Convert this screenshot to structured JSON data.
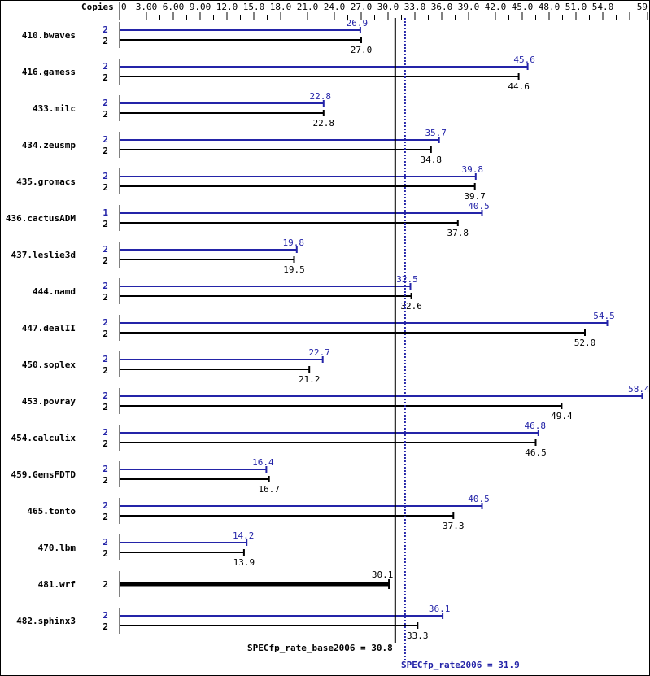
{
  "chart_data": {
    "type": "bar",
    "orientation": "horizontal",
    "axis_label": "Copies",
    "xlim": [
      0,
      59
    ],
    "tick_labels": [
      "0",
      "3.00",
      "6.00",
      "9.00",
      "12.0",
      "15.0",
      "18.0",
      "21.0",
      "24.0",
      "27.0",
      "30.0",
      "33.0",
      "36.0",
      "39.0",
      "42.0",
      "45.0",
      "48.0",
      "51.0",
      "54.0",
      "59.0"
    ],
    "tick_values": [
      0,
      3,
      6,
      9,
      12,
      15,
      18,
      21,
      24,
      27,
      30,
      33,
      36,
      39,
      42,
      45,
      48,
      51,
      54,
      59
    ],
    "colors": {
      "peak": "#2424a8",
      "base": "#000000"
    },
    "benchmarks": [
      {
        "name": "410.bwaves",
        "peak_copies": "2",
        "peak": 26.9,
        "peak_label": "26.9",
        "base_copies": "2",
        "base": 27.0,
        "base_label": "27.0"
      },
      {
        "name": "416.gamess",
        "peak_copies": "2",
        "peak": 45.6,
        "peak_label": "45.6",
        "base_copies": "2",
        "base": 44.6,
        "base_label": "44.6"
      },
      {
        "name": "433.milc",
        "peak_copies": "2",
        "peak": 22.8,
        "peak_label": "22.8",
        "base_copies": "2",
        "base": 22.8,
        "base_label": "22.8"
      },
      {
        "name": "434.zeusmp",
        "peak_copies": "2",
        "peak": 35.7,
        "peak_label": "35.7",
        "base_copies": "2",
        "base": 34.8,
        "base_label": "34.8"
      },
      {
        "name": "435.gromacs",
        "peak_copies": "2",
        "peak": 39.8,
        "peak_label": "39.8",
        "base_copies": "2",
        "base": 39.7,
        "base_label": "39.7"
      },
      {
        "name": "436.cactusADM",
        "peak_copies": "1",
        "peak": 40.5,
        "peak_label": "40.5",
        "base_copies": "2",
        "base": 37.8,
        "base_label": "37.8"
      },
      {
        "name": "437.leslie3d",
        "peak_copies": "2",
        "peak": 19.8,
        "peak_label": "19.8",
        "base_copies": "2",
        "base": 19.5,
        "base_label": "19.5"
      },
      {
        "name": "444.namd",
        "peak_copies": "2",
        "peak": 32.5,
        "peak_label": "32.5",
        "base_copies": "2",
        "base": 32.6,
        "base_label": "32.6"
      },
      {
        "name": "447.dealII",
        "peak_copies": "2",
        "peak": 54.5,
        "peak_label": "54.5",
        "base_copies": "2",
        "base": 52.0,
        "base_label": "52.0"
      },
      {
        "name": "450.soplex",
        "peak_copies": "2",
        "peak": 22.7,
        "peak_label": "22.7",
        "base_copies": "2",
        "base": 21.2,
        "base_label": "21.2"
      },
      {
        "name": "453.povray",
        "peak_copies": "2",
        "peak": 58.4,
        "peak_label": "58.4",
        "base_copies": "2",
        "base": 49.4,
        "base_label": "49.4"
      },
      {
        "name": "454.calculix",
        "peak_copies": "2",
        "peak": 46.8,
        "peak_label": "46.8",
        "base_copies": "2",
        "base": 46.5,
        "base_label": "46.5"
      },
      {
        "name": "459.GemsFDTD",
        "peak_copies": "2",
        "peak": 16.4,
        "peak_label": "16.4",
        "base_copies": "2",
        "base": 16.7,
        "base_label": "16.7"
      },
      {
        "name": "465.tonto",
        "peak_copies": "2",
        "peak": 40.5,
        "peak_label": "40.5",
        "base_copies": "2",
        "base": 37.3,
        "base_label": "37.3"
      },
      {
        "name": "470.lbm",
        "peak_copies": "2",
        "peak": 14.2,
        "peak_label": "14.2",
        "base_copies": "2",
        "base": 13.9,
        "base_label": "13.9"
      },
      {
        "name": "481.wrf",
        "peak_copies": null,
        "peak": null,
        "peak_label": null,
        "base_copies": "2",
        "base": 30.1,
        "base_label": "30.1"
      },
      {
        "name": "482.sphinx3",
        "peak_copies": "2",
        "peak": 36.1,
        "peak_label": "36.1",
        "base_copies": "2",
        "base": 33.3,
        "base_label": "33.3"
      }
    ],
    "base_score": {
      "value": 30.8,
      "label": "SPECfp_rate_base2006 = 30.8"
    },
    "peak_score": {
      "value": 31.9,
      "label": "SPECfp_rate2006 = 31.9"
    }
  }
}
